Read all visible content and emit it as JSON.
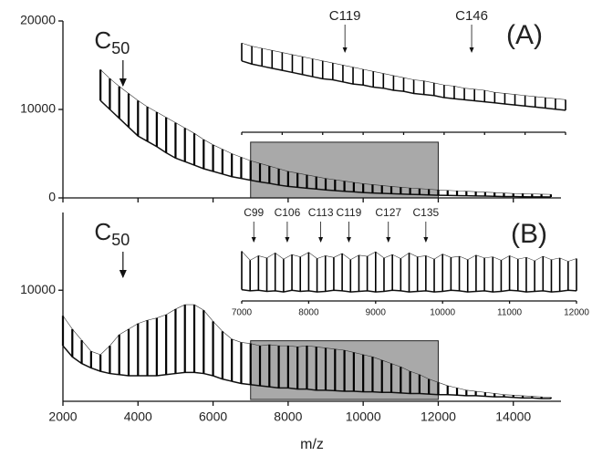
{
  "chart_data": [
    {
      "type": "spectrum",
      "panel_label": "(A)",
      "x": [
        3000,
        3250,
        3500,
        3750,
        4000,
        4250,
        4500,
        4750,
        5000,
        5250,
        5500,
        5750,
        6000,
        6250,
        6500,
        6750,
        7000,
        7250,
        7500,
        7750,
        8000,
        8250,
        8500,
        8750,
        9000,
        9250,
        9500,
        9750,
        10000,
        10250,
        10500,
        10750,
        11000,
        11250,
        11500,
        11750,
        12000,
        12250,
        12500,
        12750,
        13000,
        13250,
        13500,
        13750,
        14000,
        14250,
        14500,
        14750,
        15000
      ],
      "peaks": [
        14500,
        13500,
        12600,
        11800,
        11000,
        10300,
        9700,
        9100,
        8500,
        7900,
        7300,
        6600,
        6000,
        5500,
        5000,
        4600,
        4200,
        3900,
        3600,
        3300,
        3000,
        2800,
        2600,
        2400,
        2200,
        2050,
        1900,
        1750,
        1600,
        1500,
        1400,
        1300,
        1200,
        1120,
        1050,
        980,
        900,
        850,
        800,
        750,
        700,
        650,
        600,
        550,
        500,
        480,
        450,
        420,
        400
      ],
      "baseline": [
        11000,
        10000,
        9000,
        8000,
        7000,
        6400,
        5800,
        5100,
        4500,
        4100,
        3700,
        3300,
        3000,
        2700,
        2400,
        2200,
        2000,
        1800,
        1650,
        1450,
        1300,
        1200,
        1100,
        1000,
        900,
        820,
        750,
        680,
        600,
        560,
        520,
        480,
        440,
        400,
        370,
        330,
        300,
        280,
        260,
        240,
        220,
        200,
        180,
        160,
        150,
        130,
        120,
        110,
        100
      ],
      "xlim": [
        2000,
        15270
      ],
      "ylim": [
        0,
        20000
      ],
      "yticks": [
        0,
        10000,
        20000
      ],
      "xticks": [
        2000,
        4000,
        6000,
        8000,
        10000,
        12000,
        14000
      ],
      "xtick_labels": false,
      "highlight": {
        "xlim": [
          7000,
          12000
        ],
        "ylim": [
          0,
          6300
        ]
      },
      "annotations": [
        {
          "label": "C",
          "sub": "50",
          "x": 3600
        }
      ]
    },
    {
      "type": "spectrum",
      "panel_label": "(B)",
      "x": [
        2000,
        2250,
        2500,
        2750,
        3000,
        3250,
        3500,
        3750,
        4000,
        4250,
        4500,
        4750,
        5000,
        5250,
        5500,
        5750,
        6000,
        6250,
        6500,
        6750,
        7000,
        7250,
        7500,
        7750,
        8000,
        8250,
        8500,
        8750,
        9000,
        9250,
        9500,
        9750,
        10000,
        10250,
        10500,
        10750,
        11000,
        11250,
        11500,
        11750,
        12000,
        12250,
        12500,
        12750,
        13000,
        13250,
        13500,
        13750,
        14000,
        14250,
        14500,
        14750,
        15000
      ],
      "peaks": [
        7700,
        6500,
        5500,
        4500,
        4200,
        5000,
        6000,
        6500,
        7000,
        7300,
        7500,
        7800,
        8300,
        8700,
        8700,
        8200,
        7200,
        6300,
        5600,
        5300,
        5200,
        5000,
        5100,
        5000,
        5000,
        4900,
        5000,
        4900,
        4800,
        4700,
        4600,
        4400,
        4200,
        4000,
        3700,
        3400,
        3100,
        2700,
        2400,
        2000,
        1700,
        1400,
        1200,
        1000,
        900,
        800,
        700,
        600,
        550,
        500,
        450,
        400,
        350
      ],
      "baseline": [
        5000,
        4000,
        3400,
        3000,
        2700,
        2500,
        2400,
        2300,
        2300,
        2300,
        2300,
        2400,
        2500,
        2600,
        2600,
        2500,
        2300,
        2000,
        1800,
        1600,
        1500,
        1400,
        1300,
        1200,
        1200,
        1100,
        1100,
        1000,
        1000,
        950,
        900,
        900,
        850,
        850,
        800,
        800,
        750,
        700,
        700,
        650,
        600,
        600,
        550,
        500,
        500,
        450,
        400,
        400,
        350,
        300,
        300,
        250,
        250
      ],
      "xlim": [
        2000,
        15270
      ],
      "ylim": [
        0,
        17000
      ],
      "yticks": [
        10000
      ],
      "xticks": [
        2000,
        4000,
        6000,
        8000,
        10000,
        12000,
        14000
      ],
      "xtick_labels": true,
      "x_label": "m/z",
      "highlight": {
        "xlim": [
          7000,
          12000
        ],
        "ylim": [
          160,
          5450
        ]
      },
      "annotations": [
        {
          "label": "C",
          "sub": "50",
          "x": 3600
        }
      ]
    },
    {
      "type": "spectrum",
      "x": [
        7000,
        7250,
        7500,
        7750,
        8000,
        8250,
        8500,
        8750,
        9000,
        9250,
        9500,
        9750,
        10000,
        10250,
        10500,
        10750,
        11000,
        11250,
        11500,
        11750,
        12000,
        12250,
        12500,
        12750,
        13000,
        13250,
        13500,
        13750,
        14000,
        14250,
        14500,
        14750,
        15000
      ],
      "peaks": [
        85,
        82,
        80,
        78,
        76,
        74,
        72,
        70,
        68,
        66,
        64,
        62,
        60,
        58,
        56,
        54,
        52,
        50,
        49,
        47,
        45,
        44,
        42,
        41,
        40,
        38,
        37,
        36,
        35,
        34,
        33,
        32,
        31
      ],
      "baseline": [
        68,
        65,
        63,
        61,
        59,
        57,
        55,
        53,
        51,
        50,
        48,
        46,
        45,
        43,
        42,
        40,
        39,
        37,
        36,
        35,
        33,
        32,
        31,
        30,
        29,
        28,
        27,
        26,
        25,
        24,
        23,
        22,
        21
      ],
      "xlim": [
        7000,
        15000
      ],
      "ylim": [
        0,
        100
      ],
      "xticks": [
        7000,
        8000,
        9000,
        10000,
        11000,
        12000,
        13000,
        14000,
        15000
      ],
      "xtick_labels": false,
      "annotations": [
        {
          "label": "C119",
          "x": 9550
        },
        {
          "label": "C146",
          "x": 12680
        }
      ]
    },
    {
      "type": "spectrum",
      "x": [
        7000,
        7125,
        7250,
        7375,
        7500,
        7625,
        7750,
        7875,
        8000,
        8125,
        8250,
        8375,
        8500,
        8625,
        8750,
        8875,
        9000,
        9125,
        9250,
        9375,
        9500,
        9625,
        9750,
        9875,
        10000,
        10125,
        10250,
        10375,
        10500,
        10625,
        10750,
        10875,
        11000,
        11125,
        11250,
        11375,
        11500,
        11625,
        11750,
        11875,
        12000
      ],
      "peaks": [
        88,
        72,
        80,
        76,
        85,
        74,
        82,
        78,
        86,
        75,
        80,
        77,
        84,
        73,
        81,
        79,
        87,
        76,
        82,
        75,
        85,
        78,
        80,
        74,
        83,
        77,
        79,
        73,
        81,
        76,
        78,
        72,
        80,
        74,
        77,
        71,
        79,
        73,
        76,
        70,
        75
      ],
      "baseline": [
        20,
        18,
        19,
        17,
        18,
        16,
        19,
        17,
        18,
        16,
        17,
        19,
        18,
        16,
        17,
        18,
        16,
        17,
        19,
        18,
        16,
        17,
        18,
        16,
        17,
        19,
        18,
        16,
        17,
        18,
        16,
        17,
        19,
        18,
        16,
        17,
        18,
        16,
        17,
        19,
        18
      ],
      "xlim": [
        7000,
        12000
      ],
      "ylim": [
        0,
        100
      ],
      "xticks": [
        7000,
        8000,
        9000,
        10000,
        11000,
        12000
      ],
      "xtick_labels": true,
      "annotations": [
        {
          "label": "C99",
          "x": 7180
        },
        {
          "label": "C106",
          "x": 7680
        },
        {
          "label": "C113",
          "x": 8180
        },
        {
          "label": "C119",
          "x": 8600
        },
        {
          "label": "C127",
          "x": 9190
        },
        {
          "label": "C135",
          "x": 9750
        }
      ]
    }
  ]
}
